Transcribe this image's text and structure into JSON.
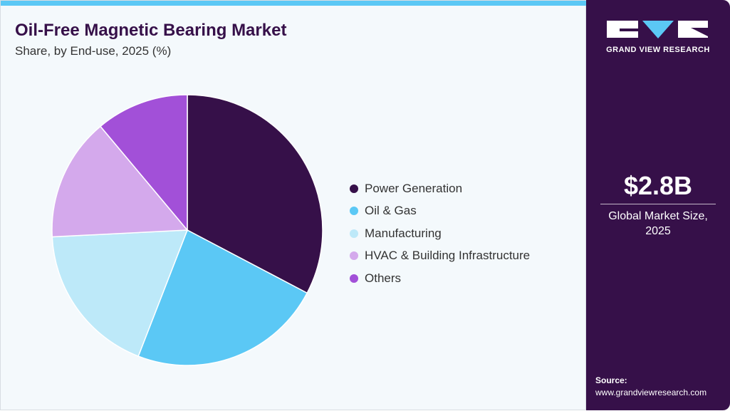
{
  "header": {
    "title": "Oil-Free Magnetic Bearing Market",
    "subtitle": "Share, by End-use, 2025 (%)"
  },
  "sidebar": {
    "logo_text": "GRAND VIEW RESEARCH",
    "market_size": "$2.8B",
    "market_size_label": "Global Market Size, 2025",
    "source_label": "Source:",
    "source_url": "www.grandviewresearch.com"
  },
  "chart_data": {
    "type": "pie",
    "title": "Oil-Free Magnetic Bearing Market",
    "subtitle": "Share, by End-use, 2025 (%)",
    "legend_position": "right",
    "series": [
      {
        "name": "Power Generation",
        "value": 32.7,
        "color": "#361049"
      },
      {
        "name": "Oil & Gas",
        "value": 23.2,
        "color": "#5bc8f5"
      },
      {
        "name": "Manufacturing",
        "value": 18.3,
        "color": "#bde9f9"
      },
      {
        "name": "HVAC & Building Infrastructure",
        "value": 14.7,
        "color": "#d4a9ec"
      },
      {
        "name": "Others",
        "value": 11.1,
        "color": "#a250d8"
      }
    ]
  }
}
